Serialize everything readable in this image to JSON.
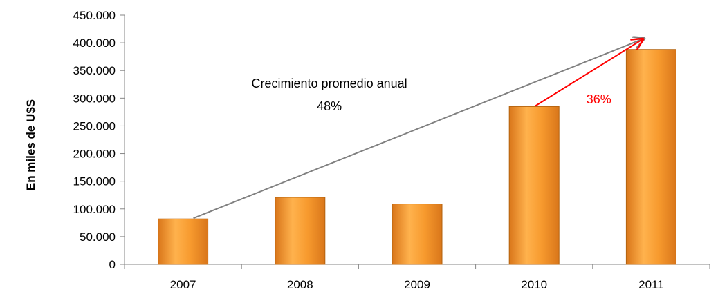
{
  "chart_data": {
    "type": "bar",
    "ylabel": "En miles de U$S",
    "categories": [
      "2007",
      "2008",
      "2009",
      "2010",
      "2011"
    ],
    "values": [
      82000,
      121000,
      109000,
      285000,
      388000
    ],
    "ylim": [
      0,
      450000
    ],
    "yticks": [
      "0",
      "50.000",
      "100.000",
      "150.000",
      "200.000",
      "250.000",
      "300.000",
      "350.000",
      "400.000",
      "450.000"
    ],
    "grid": false,
    "legend": "none",
    "bar_colors": {
      "light": "#ffb24d",
      "mid": "#f79a2e",
      "dark": "#d9761a",
      "edge": "#b3630f"
    },
    "annotations": [
      {
        "line1": "Crecimiento promedio anual",
        "line2": "48%",
        "from_category": "2007",
        "to_category": "2011",
        "color": "#808080"
      },
      {
        "text": "36%",
        "from_category": "2010",
        "to_category": "2011",
        "color": "#ff0000"
      }
    ]
  }
}
